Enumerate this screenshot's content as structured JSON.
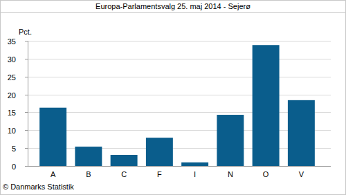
{
  "chart_data": {
    "type": "bar",
    "title": "Europa-Parlamentsvalg 25. maj 2014 - Sejerø",
    "ylabel": "Pct.",
    "source": "© Danmarks Statistik",
    "categories": [
      "A",
      "B",
      "C",
      "F",
      "I",
      "N",
      "O",
      "V"
    ],
    "values": [
      16.3,
      5.4,
      3.1,
      7.9,
      1.0,
      14.3,
      33.8,
      18.4
    ],
    "color": "#0a5d8c",
    "ylim": [
      0,
      35
    ],
    "yticks": [
      0,
      5,
      10,
      15,
      20,
      25,
      30,
      35
    ],
    "grid": true
  }
}
